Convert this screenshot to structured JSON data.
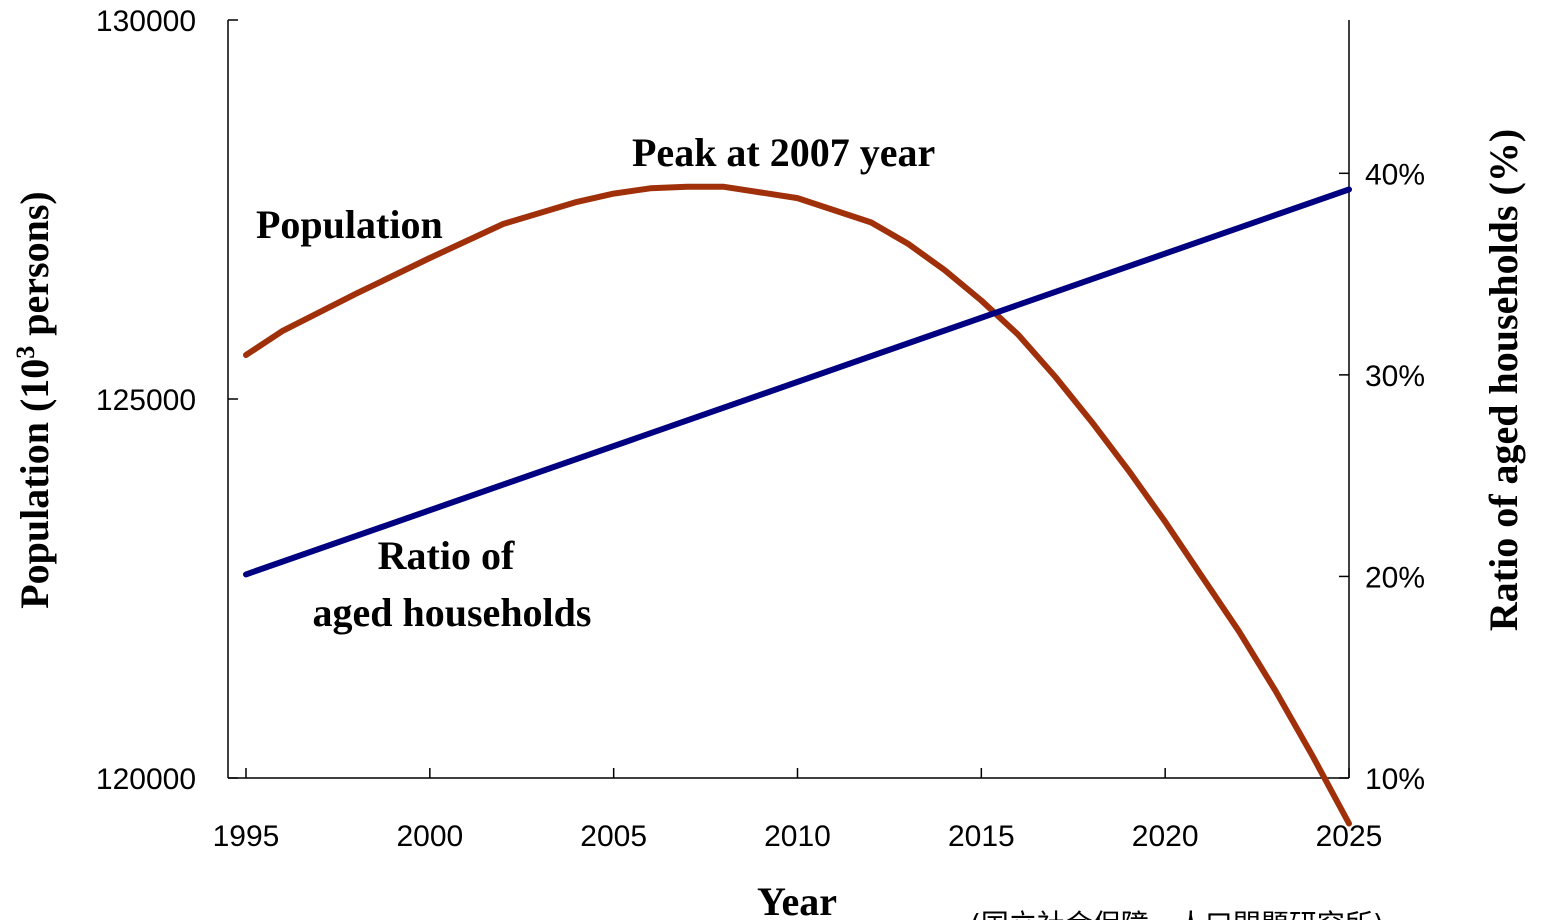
{
  "chart_data": {
    "type": "line",
    "xlabel": "Year",
    "ylabel_left_main": "Population (10",
    "ylabel_left_sup": "3",
    "ylabel_left_tail": "  persons)",
    "ylabel_right": "Ratio of aged households (%)",
    "x_ticks": [
      "1995",
      "2000",
      "2005",
      "2010",
      "2015",
      "2020",
      "2025"
    ],
    "xlim": [
      1995,
      2025
    ],
    "y_left_ticks": [
      "120000",
      "125000",
      "130000"
    ],
    "ylim_left": [
      120000,
      130000
    ],
    "y_right_ticks": [
      "10%",
      "20%",
      "30%",
      "40%"
    ],
    "ylim_right": [
      10,
      45
    ],
    "grid": false,
    "series": [
      {
        "name": "Population",
        "axis": "left",
        "color": "#a0300a",
        "x": [
          1995,
          1996,
          1998,
          2000,
          2002,
          2004,
          2005,
          2006,
          2007,
          2008,
          2010,
          2012,
          2013,
          2014,
          2015,
          2016,
          2017,
          2018,
          2019,
          2020,
          2021,
          2022,
          2023,
          2024,
          2025
        ],
        "values": [
          125580,
          125900,
          126390,
          126860,
          127310,
          127600,
          127710,
          127780,
          127800,
          127800,
          127650,
          127330,
          127050,
          126700,
          126300,
          125850,
          125300,
          124700,
          124060,
          123380,
          122660,
          121940,
          121150,
          120300,
          119400
        ]
      },
      {
        "name": "Ratio of aged households",
        "axis": "right",
        "color": "#000080",
        "x": [
          1995,
          2025
        ],
        "values": [
          20.1,
          39.2
        ]
      }
    ],
    "annotations": {
      "population_label": "Population",
      "peak_label": "Peak at 2007 year",
      "ratio_label_line1": "Ratio of",
      "ratio_label_line2": "aged households"
    },
    "source": "(国立社会保障・人口問題研究所)"
  }
}
